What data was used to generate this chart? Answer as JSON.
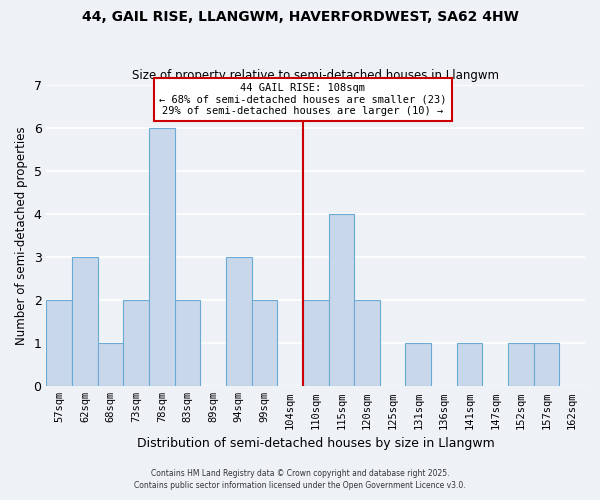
{
  "title": "44, GAIL RISE, LLANGWM, HAVERFORDWEST, SA62 4HW",
  "subtitle": "Size of property relative to semi-detached houses in Llangwm",
  "xlabel": "Distribution of semi-detached houses by size in Llangwm",
  "ylabel": "Number of semi-detached properties",
  "categories": [
    "57sqm",
    "62sqm",
    "68sqm",
    "73sqm",
    "78sqm",
    "83sqm",
    "89sqm",
    "94sqm",
    "99sqm",
    "104sqm",
    "110sqm",
    "115sqm",
    "120sqm",
    "125sqm",
    "131sqm",
    "136sqm",
    "141sqm",
    "147sqm",
    "152sqm",
    "157sqm",
    "162sqm"
  ],
  "values": [
    2,
    3,
    1,
    2,
    6,
    2,
    0,
    3,
    2,
    0,
    2,
    4,
    2,
    0,
    1,
    0,
    1,
    0,
    1,
    1,
    0
  ],
  "bar_color": "#c8d8ea",
  "bar_edge_color": "#6aaad4",
  "property_line_color": "#cc0000",
  "annotation_title": "44 GAIL RISE: 108sqm",
  "annotation_line1": "← 68% of semi-detached houses are smaller (23)",
  "annotation_line2": "29% of semi-detached houses are larger (10) →",
  "annotation_box_edge_color": "#cc0000",
  "ylim": [
    0,
    7
  ],
  "yticks": [
    0,
    1,
    2,
    3,
    4,
    5,
    6,
    7
  ],
  "background_color": "#eef2f7",
  "grid_color": "#ffffff",
  "footnote1": "Contains HM Land Registry data © Crown copyright and database right 2025.",
  "footnote2": "Contains public sector information licensed under the Open Government Licence v3.0."
}
